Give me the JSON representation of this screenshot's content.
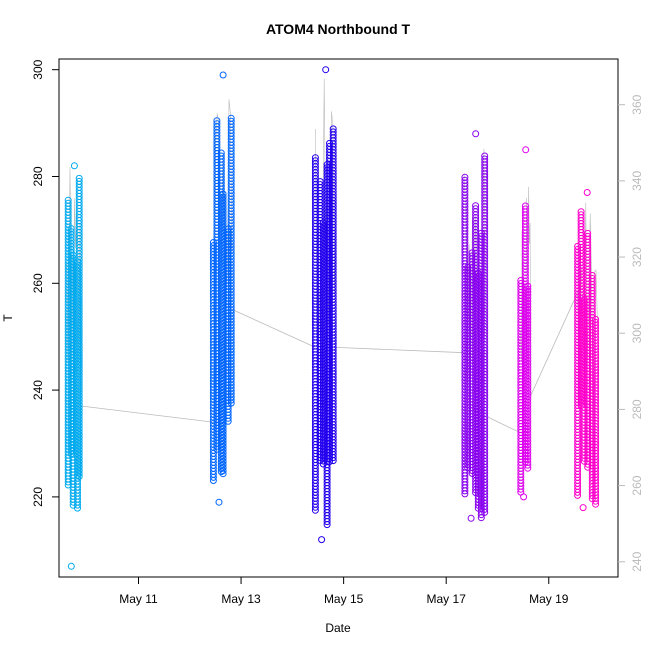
{
  "chart_data": {
    "type": "scatter",
    "title": "ATOM4 Northbound T",
    "xlabel": "Date",
    "ylabel": "T",
    "x_tick_labels": [
      "May 11",
      "May 13",
      "May 15",
      "May 17",
      "May 19"
    ],
    "x_tick_days": [
      11,
      13,
      15,
      17,
      19
    ],
    "xlim_days": [
      9.45,
      20.35
    ],
    "ylim": [
      205,
      302
    ],
    "y_ticks": [
      220,
      240,
      260,
      280,
      300
    ],
    "y_right_lim": [
      236,
      372
    ],
    "y_right_ticks": [
      240,
      260,
      280,
      300,
      320,
      340,
      360
    ],
    "grid": false,
    "legend": "none",
    "line_color": "#bbbbbb",
    "right_axis_color": "#bbbbbb",
    "series": [
      {
        "color": "#00aaee",
        "segments": [
          {
            "x_start": 9.6,
            "x_end": 9.9,
            "y_bottom": 207,
            "y_top": 282,
            "y_start": 244,
            "y_end": 237
          }
        ]
      },
      {
        "color": "#0066ff",
        "segments": [
          {
            "x_start": 12.45,
            "x_end": 12.85,
            "y_bottom": 219,
            "y_top": 299,
            "y_start": 234,
            "y_end": 255
          }
        ]
      },
      {
        "color": "#2200ee",
        "segments": [
          {
            "x_start": 14.45,
            "x_end": 14.85,
            "y_bottom": 212,
            "y_top": 300,
            "y_start": 248,
            "y_end": 248
          }
        ]
      },
      {
        "color": "#8800ee",
        "segments": [
          {
            "x_start": 17.35,
            "x_end": 17.8,
            "y_bottom": 216,
            "y_top": 288,
            "y_start": 247,
            "y_end": 235
          }
        ]
      },
      {
        "color": "#dd00ee",
        "segments": [
          {
            "x_start": 18.45,
            "x_end": 18.65,
            "y_bottom": 220,
            "y_top": 285,
            "y_start": 232,
            "y_end": 239
          }
        ]
      },
      {
        "color": "#ff00cc",
        "segments": [
          {
            "x_start": 19.55,
            "x_end": 19.95,
            "y_bottom": 218,
            "y_top": 277,
            "y_start": 258,
            "y_end": 220
          }
        ]
      }
    ]
  }
}
